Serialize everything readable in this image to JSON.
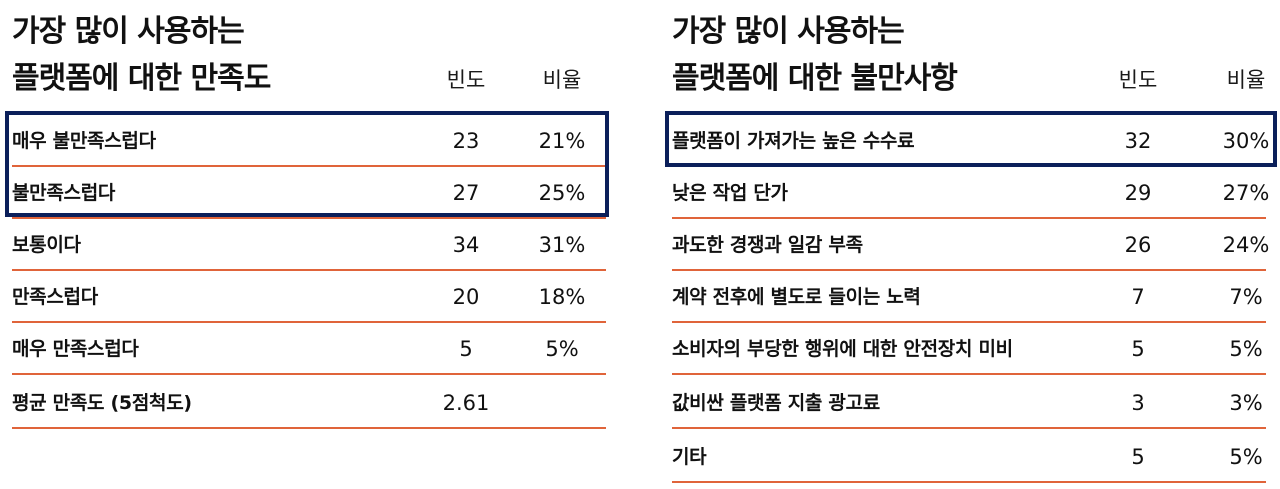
{
  "colors": {
    "accent_line": "#e0643a",
    "highlight_border": "#0b1f5a"
  },
  "satisfaction": {
    "title_line1": "가장 많이 사용하는",
    "title_line2": "플랫폼에 대한 만족도",
    "header_freq": "빈도",
    "header_ratio": "비율",
    "rows": [
      {
        "label": "매우 불만족스럽다",
        "freq": "23",
        "ratio": "21%"
      },
      {
        "label": "불만족스럽다",
        "freq": "27",
        "ratio": "25%"
      },
      {
        "label": "보통이다",
        "freq": "34",
        "ratio": "31%"
      },
      {
        "label": "만족스럽다",
        "freq": "20",
        "ratio": "18%"
      },
      {
        "label": "매우 만족스럽다",
        "freq": "5",
        "ratio": "5%"
      },
      {
        "label": "평균 만족도 (5점척도)",
        "freq": "2.61",
        "ratio": ""
      }
    ]
  },
  "complaints": {
    "title_line1": "가장 많이 사용하는",
    "title_line2": "플랫폼에 대한 불만사항",
    "header_freq": "빈도",
    "header_ratio": "비율",
    "rows": [
      {
        "label": "플랫폼이 가져가는 높은 수수료",
        "freq": "32",
        "ratio": "30%"
      },
      {
        "label": "낮은 작업 단가",
        "freq": "29",
        "ratio": "27%"
      },
      {
        "label": "과도한 경쟁과 일감 부족",
        "freq": "26",
        "ratio": "24%"
      },
      {
        "label": "계약 전후에 별도로 들이는 노력",
        "freq": "7",
        "ratio": "7%"
      },
      {
        "label": "소비자의 부당한 행위에 대한 안전장치 미비",
        "freq": "5",
        "ratio": "5%"
      },
      {
        "label": "값비싼 플랫폼 지출 광고료",
        "freq": "3",
        "ratio": "3%"
      },
      {
        "label": "기타",
        "freq": "5",
        "ratio": "5%"
      }
    ]
  }
}
